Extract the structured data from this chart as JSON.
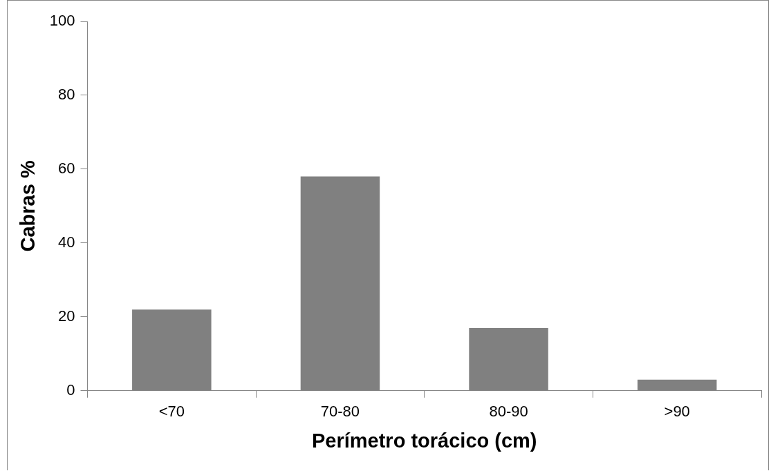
{
  "chart_data": {
    "type": "bar",
    "xlabel": "Perímetro torácico (cm)",
    "ylabel": "Cabras %",
    "categories": [
      "<70",
      "70-80",
      "80-90",
      ">90"
    ],
    "values": [
      22,
      58,
      17,
      3
    ],
    "color": "#808080",
    "ylim": [
      0,
      100
    ],
    "yticks": [
      0,
      20,
      40,
      60,
      80,
      100
    ],
    "grid": false,
    "legend": false
  }
}
